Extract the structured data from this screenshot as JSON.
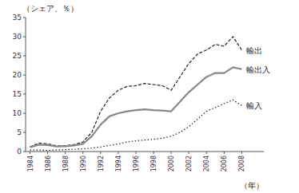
{
  "chart_data": {
    "type": "line",
    "y_label": "（シェア、％）",
    "x_label": "（年）",
    "x": [
      1984,
      1985,
      1986,
      1987,
      1988,
      1989,
      1990,
      1991,
      1992,
      1993,
      1994,
      1995,
      1996,
      1997,
      1998,
      1999,
      2000,
      2001,
      2002,
      2003,
      2004,
      2005,
      2006,
      2007,
      2008
    ],
    "series": [
      {
        "name": "輸出",
        "color": "#222222",
        "line_style": "dashed",
        "values": [
          1.2,
          2.2,
          2.0,
          1.5,
          1.5,
          1.8,
          2.5,
          5.0,
          10.5,
          14.0,
          16.0,
          17.0,
          17.2,
          17.8,
          17.5,
          17.2,
          16.0,
          19.5,
          23.0,
          25.5,
          26.5,
          28.0,
          27.5,
          30.0,
          26.5
        ]
      },
      {
        "name": "輸出入",
        "color": "#888888",
        "line_style": "solid",
        "values": [
          1.1,
          1.8,
          1.7,
          1.3,
          1.4,
          1.6,
          2.0,
          4.0,
          7.0,
          9.2,
          10.0,
          10.5,
          10.8,
          11.0,
          10.8,
          10.7,
          10.5,
          13.0,
          15.5,
          17.5,
          19.5,
          20.5,
          20.5,
          22.0,
          21.5
        ]
      },
      {
        "name": "輸入",
        "color": "#222222",
        "line_style": "dotted",
        "values": [
          0.4,
          0.4,
          0.3,
          0.4,
          0.5,
          0.6,
          0.7,
          0.9,
          1.2,
          1.6,
          2.0,
          2.5,
          2.8,
          3.0,
          3.2,
          3.5,
          4.0,
          5.0,
          6.5,
          8.5,
          10.5,
          11.5,
          12.5,
          13.5,
          12.0
        ]
      }
    ],
    "xlim": [
      1983.5,
      2010.5
    ],
    "xticks": [
      1984,
      1986,
      1988,
      1990,
      1992,
      1994,
      1996,
      1998,
      2000,
      2002,
      2004,
      2006,
      2008
    ],
    "ylim": [
      0,
      35
    ],
    "yticks": [
      0,
      5,
      10,
      15,
      20,
      25,
      30,
      35
    ],
    "grid": false
  }
}
